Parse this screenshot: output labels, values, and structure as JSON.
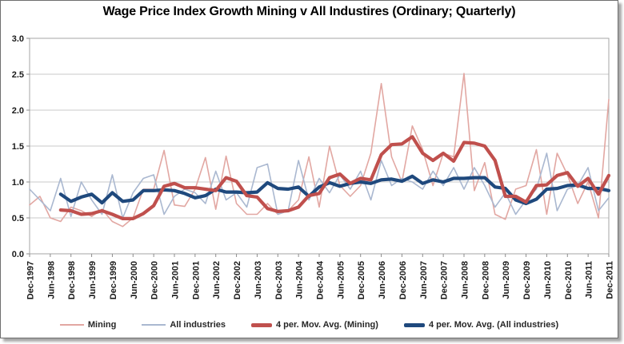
{
  "chart_data": {
    "type": "line",
    "title": "Wage Price Index Growth Mining v All Industires (Ordinary; Quarterly)",
    "x_start": "Dec-1997",
    "x_interval": "quarterly",
    "x_points": 57,
    "x_tick_every_n_points": 2,
    "x_tick_labels": [
      "Dec-1997",
      "Jun-1998",
      "Dec-1998",
      "Jun-1999",
      "Dec-1999",
      "Jun-2000",
      "Dec-2000",
      "Jun-2001",
      "Dec-2001",
      "Jun-2002",
      "Dec-2002",
      "Jun-2003",
      "Dec-2003",
      "Jun-2004",
      "Dec-2004",
      "Jun-2005",
      "Dec-2005",
      "Jun-2006",
      "Dec-2006",
      "Jun-2007",
      "Dec-2007",
      "Jun-2008",
      "Dec-2008",
      "Jun-2009",
      "Dec-2009",
      "Jun-2010",
      "Dec-2010",
      "Jun-2011",
      "Dec-2011"
    ],
    "ylim": [
      0.0,
      3.0
    ],
    "y_tick_step": 0.5,
    "y_tick_labels": [
      "0.0",
      "0.5",
      "1.0",
      "1.5",
      "2.0",
      "2.5",
      "3.0"
    ],
    "grid": "horizontal",
    "legend_position": "bottom",
    "series": [
      {
        "name": "Mining",
        "style": "thin",
        "color": "#E2A7A2",
        "values": [
          0.68,
          0.8,
          0.5,
          0.45,
          0.65,
          0.6,
          0.52,
          0.62,
          0.45,
          0.38,
          0.5,
          0.9,
          0.9,
          1.44,
          0.68,
          0.66,
          0.9,
          1.34,
          0.62,
          1.36,
          0.7,
          0.55,
          0.55,
          0.7,
          0.55,
          0.6,
          0.75,
          1.35,
          0.65,
          1.5,
          0.95,
          0.8,
          0.95,
          1.4,
          2.37,
          1.35,
          1.0,
          1.78,
          1.45,
          0.95,
          1.4,
          1.35,
          2.51,
          0.88,
          1.27,
          0.55,
          0.48,
          0.9,
          0.95,
          1.45,
          0.55,
          1.4,
          1.1,
          0.7,
          1.0,
          0.5,
          2.15
        ]
      },
      {
        "name": "All industries",
        "style": "thin",
        "color": "#AAB8D0",
        "values": [
          0.9,
          0.75,
          0.6,
          1.05,
          0.52,
          1.0,
          0.75,
          0.55,
          1.1,
          0.5,
          0.85,
          1.05,
          1.1,
          0.55,
          0.8,
          0.9,
          0.85,
          0.7,
          1.15,
          0.75,
          0.85,
          0.65,
          1.2,
          1.25,
          0.55,
          0.6,
          1.3,
          0.75,
          1.05,
          0.85,
          1.1,
          0.9,
          1.15,
          0.75,
          1.3,
          0.95,
          1.05,
          1.0,
          0.9,
          1.15,
          0.95,
          1.2,
          0.9,
          1.2,
          0.95,
          0.65,
          0.85,
          0.55,
          0.75,
          0.9,
          1.4,
          0.6,
          0.9,
          0.95,
          1.2,
          0.6,
          0.78
        ]
      },
      {
        "name": "4 per. Mov. Avg. (Mining)",
        "style": "thick",
        "color": "#C0504D",
        "derived_from": "Mining",
        "window": 4,
        "values": [
          null,
          null,
          null,
          0.61,
          0.6,
          0.55,
          0.56,
          0.6,
          0.55,
          0.49,
          0.49,
          0.56,
          0.67,
          0.94,
          0.98,
          0.92,
          0.92,
          0.9,
          0.88,
          1.06,
          1.01,
          0.81,
          0.79,
          0.63,
          0.59,
          0.6,
          0.65,
          0.81,
          0.84,
          1.06,
          1.11,
          0.98,
          1.05,
          1.03,
          1.38,
          1.52,
          1.53,
          1.63,
          1.4,
          1.3,
          1.4,
          1.29,
          1.55,
          1.54,
          1.5,
          1.3,
          0.8,
          0.8,
          0.72,
          0.95,
          0.96,
          1.09,
          1.13,
          0.94,
          1.05,
          0.83,
          1.09
        ]
      },
      {
        "name": "4 per. Mov. Avg. (All industries)",
        "style": "thick",
        "color": "#1F497D",
        "derived_from": "All industries",
        "window": 4,
        "values": [
          null,
          null,
          null,
          0.83,
          0.73,
          0.79,
          0.83,
          0.71,
          0.85,
          0.73,
          0.75,
          0.88,
          0.88,
          0.89,
          0.88,
          0.84,
          0.78,
          0.81,
          0.9,
          0.86,
          0.86,
          0.85,
          0.86,
          0.99,
          0.91,
          0.9,
          0.93,
          0.8,
          0.93,
          0.99,
          0.94,
          0.98,
          1.0,
          0.98,
          1.03,
          1.04,
          1.01,
          1.08,
          0.98,
          1.03,
          1.0,
          1.05,
          1.05,
          1.06,
          1.06,
          0.93,
          0.91,
          0.75,
          0.7,
          0.76,
          0.9,
          0.91,
          0.95,
          0.96,
          0.91,
          0.91,
          0.88
        ]
      }
    ]
  }
}
